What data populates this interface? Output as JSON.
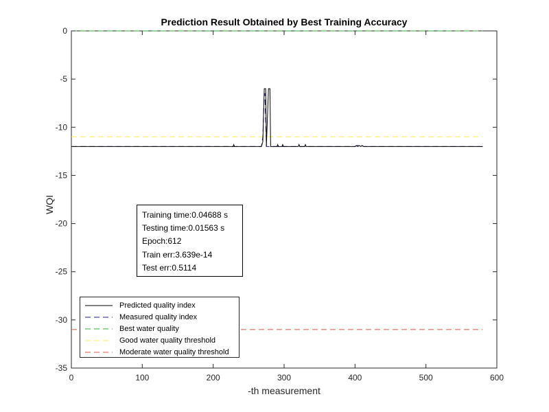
{
  "chart_data": {
    "type": "line",
    "title": "Prediction Result Obtained by Best Training Accuracy",
    "xlabel": "-th measurement",
    "ylabel": "WQI",
    "xlim": [
      0,
      600
    ],
    "ylim": [
      -35,
      0
    ],
    "xticks": [
      0,
      100,
      200,
      300,
      400,
      500,
      600
    ],
    "yticks": [
      0,
      -5,
      -10,
      -15,
      -20,
      -25,
      -30,
      -35
    ],
    "grid": false,
    "legend_position": "bottom-left",
    "series": [
      {
        "name": "Predicted quality index",
        "color": "#000000",
        "style": "solid",
        "points": [
          [
            0,
            -12
          ],
          [
            228,
            -12
          ],
          [
            229,
            -11.8
          ],
          [
            230,
            -12
          ],
          [
            268,
            -12
          ],
          [
            270,
            -11.5
          ],
          [
            272,
            -6
          ],
          [
            274,
            -6
          ],
          [
            275,
            -12
          ],
          [
            278,
            -6
          ],
          [
            280,
            -6
          ],
          [
            281,
            -12
          ],
          [
            290,
            -12
          ],
          [
            291,
            -11.8
          ],
          [
            292,
            -12
          ],
          [
            297,
            -12
          ],
          [
            298,
            -11.8
          ],
          [
            299,
            -12
          ],
          [
            320,
            -12
          ],
          [
            321,
            -11.8
          ],
          [
            322,
            -12
          ],
          [
            329,
            -12
          ],
          [
            330,
            -11.8
          ],
          [
            331,
            -12
          ],
          [
            400,
            -12
          ],
          [
            402,
            -11.9
          ],
          [
            404,
            -12
          ],
          [
            406,
            -11.9
          ],
          [
            408,
            -12
          ],
          [
            410,
            -11.9
          ],
          [
            412,
            -12
          ],
          [
            580,
            -12
          ]
        ]
      },
      {
        "name": "Measured quality index",
        "color": "#1c1c8a",
        "style": "dashed",
        "points": [
          [
            0,
            -12
          ],
          [
            268,
            -12
          ],
          [
            270,
            -11
          ],
          [
            272,
            -6.5
          ],
          [
            273,
            -6.5
          ],
          [
            275,
            -12
          ],
          [
            400,
            -12
          ],
          [
            407,
            -11.8
          ],
          [
            412,
            -12
          ],
          [
            580,
            -12
          ]
        ]
      },
      {
        "name": "Best water quality",
        "color": "#33aa33",
        "style": "dashed",
        "points": [
          [
            0,
            0
          ],
          [
            580,
            0
          ]
        ]
      },
      {
        "name": "Good water quality threshold",
        "color": "#ffee55",
        "style": "dashed",
        "points": [
          [
            0,
            -11
          ],
          [
            580,
            -11
          ]
        ]
      },
      {
        "name": "Moderate water quality threshold",
        "color": "#e0554a",
        "style": "dashed",
        "points": [
          [
            0,
            -31
          ],
          [
            580,
            -31
          ]
        ]
      }
    ],
    "annotation": [
      "Training time:0.04688 s",
      "Testing time:0.01563 s",
      "Epoch:612",
      "Train err:3.639e-14",
      "Test err:0.5114"
    ]
  }
}
